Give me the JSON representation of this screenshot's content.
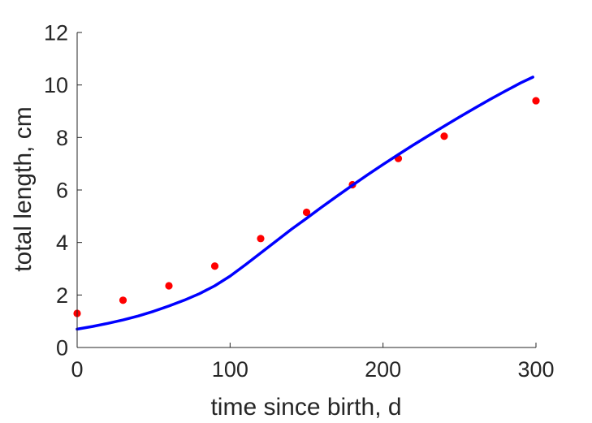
{
  "chart_data": {
    "type": "line",
    "xlabel": "time since birth, d",
    "ylabel": "total length, cm",
    "xlim": [
      0,
      300
    ],
    "ylim": [
      0,
      12
    ],
    "xticks": [
      "0",
      "100",
      "200",
      "300"
    ],
    "yticks": [
      "0",
      "2",
      "4",
      "6",
      "8",
      "10",
      "12"
    ],
    "grid": false,
    "series": [
      {
        "kind": "scatter",
        "color": "#ff0000",
        "x": [
          0,
          30,
          60,
          90,
          120,
          150,
          180,
          210,
          240,
          300
        ],
        "y": [
          1.3,
          1.8,
          2.35,
          3.1,
          4.15,
          5.15,
          6.2,
          7.2,
          8.05,
          9.4
        ]
      },
      {
        "kind": "line",
        "color": "#0000ff",
        "x": [
          0,
          10,
          20,
          30,
          40,
          50,
          60,
          70,
          80,
          90,
          100,
          110,
          120,
          130,
          140,
          150,
          160,
          170,
          180,
          190,
          200,
          210,
          220,
          230,
          240,
          250,
          260,
          270,
          280,
          290,
          298
        ],
        "y": [
          0.7,
          0.8,
          0.92,
          1.05,
          1.2,
          1.38,
          1.58,
          1.8,
          2.05,
          2.35,
          2.72,
          3.15,
          3.6,
          4.05,
          4.5,
          4.92,
          5.35,
          5.77,
          6.18,
          6.58,
          6.97,
          7.35,
          7.72,
          8.08,
          8.43,
          8.78,
          9.12,
          9.45,
          9.77,
          10.08,
          10.3
        ]
      }
    ]
  }
}
